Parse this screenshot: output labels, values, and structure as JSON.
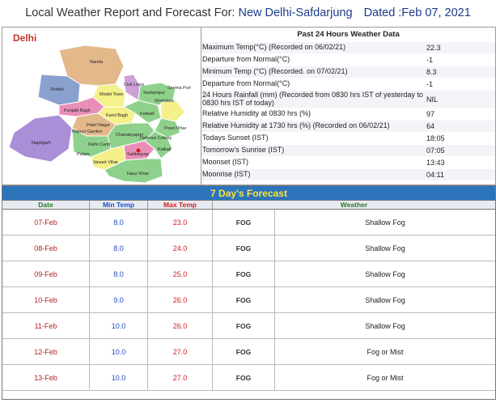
{
  "header": {
    "title": "Local Weather Report and Forecast For:",
    "station": "New Delhi-Safdarjung",
    "dated": "Dated :Feb 07, 2021"
  },
  "map": {
    "title": "Delhi",
    "labels": [
      "Narela",
      "Rohini",
      "Model Town",
      "Civil Lines",
      "Seelampur",
      "Shahdara",
      "Seema Puri",
      "Punjabi Bagh",
      "Karol Bagh",
      "Preet Vihar",
      "Kotwali",
      "Patel Nagar",
      "Rajouri Garden",
      "Najafgarh",
      "Delhi Cantt",
      "Chanakyapuri",
      "Palam",
      "Defence Colony",
      "Vasant Vihar",
      "Safdarjung",
      "Kalkaji",
      "Hauz Khas"
    ]
  },
  "past24": {
    "title": "Past 24 Hours Weather Data",
    "rows": [
      {
        "label": "Maximum Temp(°C) (Recorded on 06/02/21)",
        "value": "22.3"
      },
      {
        "label": "Departure from Normal(°C)",
        "value": "-1"
      },
      {
        "label": "Minimum Temp (°C) (Recorded. on 07/02/21)",
        "value": "8.3"
      },
      {
        "label": "Departure from Normal(°C)",
        "value": "-1"
      },
      {
        "label": "24 Hours Rainfall (mm) (Recorded from 0830 hrs IST of yesterday to 0830 hrs IST of today)",
        "value": "NIL"
      },
      {
        "label": "Relative Humidity at 0830 hrs (%)",
        "value": "97"
      },
      {
        "label": "Relative Humidity at 1730 hrs (%) (Recorded on 06/02/21)",
        "value": "64"
      },
      {
        "label": "Todays Sunset (IST)",
        "value": "18:05"
      },
      {
        "label": "Tomorrow's Sunrise (IST)",
        "value": "07:05"
      },
      {
        "label": "Moonset (IST)",
        "value": "13:43"
      },
      {
        "label": "Moonrise (IST)",
        "value": "04:11"
      }
    ]
  },
  "forecast": {
    "title": "7 Day's Forecast",
    "columns": {
      "date": "Date",
      "min": "Min Temp",
      "max": "Max Temp",
      "weather": "Weather"
    },
    "rows": [
      {
        "date": "07-Feb",
        "min": "8.0",
        "max": "23.0",
        "icon": "FOG",
        "weather": "Shallow Fog"
      },
      {
        "date": "08-Feb",
        "min": "8.0",
        "max": "24.0",
        "icon": "FOG",
        "weather": "Shallow Fog"
      },
      {
        "date": "09-Feb",
        "min": "8.0",
        "max": "25.0",
        "icon": "FOG",
        "weather": "Shallow Fog"
      },
      {
        "date": "10-Feb",
        "min": "9.0",
        "max": "26.0",
        "icon": "FOG",
        "weather": "Shallow Fog"
      },
      {
        "date": "11-Feb",
        "min": "10.0",
        "max": "26.0",
        "icon": "FOG",
        "weather": "Shallow Fog"
      },
      {
        "date": "12-Feb",
        "min": "10.0",
        "max": "27.0",
        "icon": "FOG",
        "weather": "Fog or Mist"
      },
      {
        "date": "13-Feb",
        "min": "10.0",
        "max": "27.0",
        "icon": "FOG",
        "weather": "Fog or Mist"
      }
    ]
  },
  "colors": {
    "forecast_bar": "#2c74bb",
    "forecast_title_text": "#ffe33b",
    "min_temp": "#1d4fc4",
    "max_temp": "#d02020",
    "date_text": "#b22222"
  }
}
